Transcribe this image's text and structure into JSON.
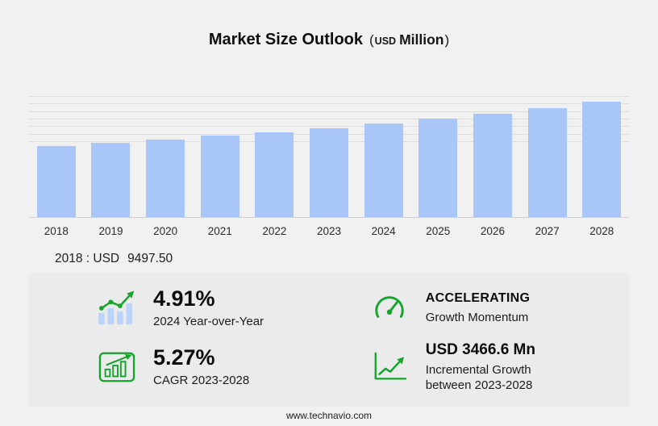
{
  "title": {
    "main": "Market Size Outlook",
    "open_paren": "(",
    "currency": "USD",
    "unit": "Million",
    "close_paren": ")"
  },
  "chart_data": {
    "type": "bar",
    "title": "Market Size Outlook (USD Million)",
    "categories": [
      "2018",
      "2019",
      "2020",
      "2021",
      "2022",
      "2023",
      "2024",
      "2025",
      "2026",
      "2027",
      "2028"
    ],
    "values": [
      9497.5,
      9920,
      10350,
      10800,
      11300,
      11840,
      12420,
      13080,
      13770,
      14500,
      15310
    ],
    "labeled_point": {
      "year": "2018",
      "value": 9497.5,
      "unit": "USD Million"
    },
    "xlabel": "",
    "ylabel": "",
    "ylim": [
      0,
      16000
    ],
    "grid": true,
    "grid_values": [
      10000,
      11000,
      12000,
      13000,
      14000,
      15000,
      16000
    ],
    "legend": false,
    "bar_color": "#a8c7f8"
  },
  "annotation": {
    "label": "2018 : USD",
    "value": "9497.50"
  },
  "stats": [
    {
      "id": "yoy",
      "icon": "bar-trend-icon",
      "value": "4.91%",
      "label": "2024 Year-over-Year"
    },
    {
      "id": "momentum",
      "icon": "speedometer-icon",
      "value": "ACCELERATING",
      "label": "Growth Momentum"
    },
    {
      "id": "cagr",
      "icon": "chart-window-icon",
      "value": "5.27%",
      "label": "CAGR 2023-2028"
    },
    {
      "id": "incremental",
      "icon": "growth-arrow-icon",
      "value": "USD 3466.6 Mn",
      "label": "Incremental Growth between 2023-2028"
    }
  ],
  "footer": {
    "url": "www.technavio.com"
  },
  "colors": {
    "background": "#f1f1f2",
    "panel": "#ebebec",
    "bar": "#a8c7f8",
    "icon_bar": "#b9d3fa",
    "green": "#15a42c",
    "grid": "#dcdcdc"
  }
}
